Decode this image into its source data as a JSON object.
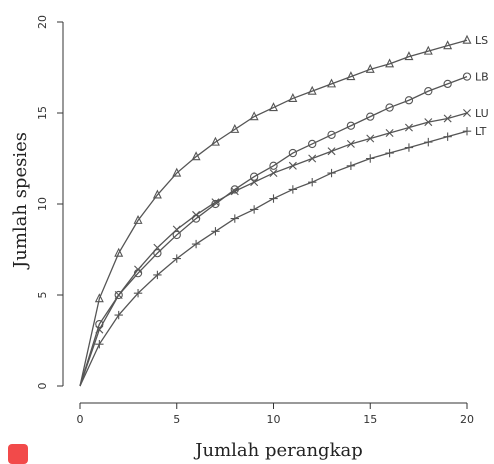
{
  "chart_data": {
    "type": "line",
    "xlabel": "Jumlah perangkap",
    "ylabel": "Jumlah spesies",
    "xlim": [
      0,
      20
    ],
    "ylim": [
      0,
      20
    ],
    "x_ticks": [
      0,
      5,
      10,
      15,
      20
    ],
    "y_ticks": [
      0,
      5,
      10,
      15,
      20
    ],
    "grid": false,
    "legend": "labels at line ends (right)",
    "x": [
      0,
      1,
      2,
      3,
      4,
      5,
      6,
      7,
      8,
      9,
      10,
      11,
      12,
      13,
      14,
      15,
      16,
      17,
      18,
      19,
      20
    ],
    "series": [
      {
        "name": "LS",
        "marker": "triangle",
        "values": [
          0,
          4.8,
          7.3,
          9.1,
          10.5,
          11.7,
          12.6,
          13.4,
          14.1,
          14.8,
          15.3,
          15.8,
          16.2,
          16.6,
          17.0,
          17.4,
          17.7,
          18.1,
          18.4,
          18.7,
          19.0
        ]
      },
      {
        "name": "LB",
        "marker": "circle",
        "values": [
          0,
          3.4,
          5.0,
          6.2,
          7.3,
          8.3,
          9.2,
          10.0,
          10.8,
          11.5,
          12.1,
          12.8,
          13.3,
          13.8,
          14.3,
          14.8,
          15.3,
          15.7,
          16.2,
          16.6,
          17.0
        ]
      },
      {
        "name": "LU",
        "marker": "x",
        "values": [
          0,
          3.1,
          5.0,
          6.4,
          7.6,
          8.6,
          9.4,
          10.1,
          10.7,
          11.2,
          11.7,
          12.1,
          12.5,
          12.9,
          13.3,
          13.6,
          13.9,
          14.2,
          14.5,
          14.7,
          15.0
        ]
      },
      {
        "name": "LT",
        "marker": "plus",
        "values": [
          0,
          2.3,
          3.9,
          5.1,
          6.1,
          7.0,
          7.8,
          8.5,
          9.2,
          9.7,
          10.3,
          10.8,
          11.2,
          11.7,
          12.1,
          12.5,
          12.8,
          13.1,
          13.4,
          13.7,
          14.0
        ]
      }
    ]
  },
  "decor": {
    "badge_color": "#f24a4a",
    "line_color": "#555555"
  }
}
